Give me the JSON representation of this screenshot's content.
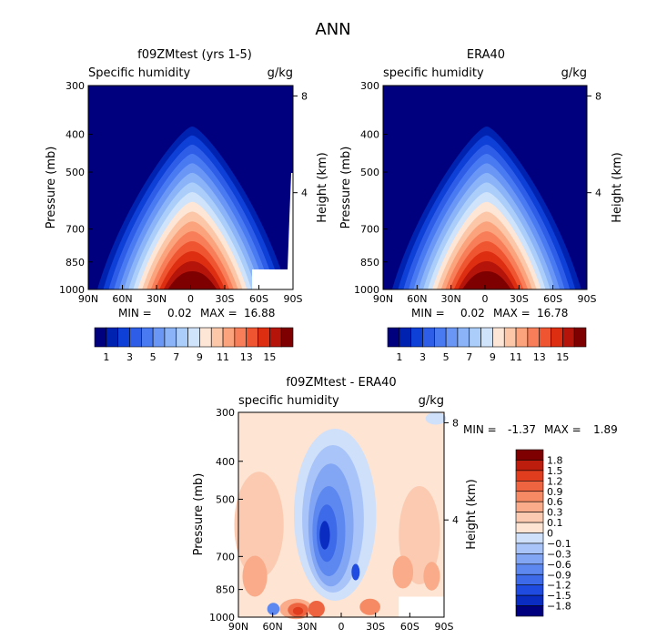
{
  "figure": {
    "title": "ANN"
  },
  "colors": {
    "abs_scale": [
      "#00007f",
      "#0022b0",
      "#0e3fd6",
      "#2e5ee8",
      "#4a7af2",
      "#6a96f6",
      "#8ab3f8",
      "#aacdfa",
      "#cfe3fb",
      "#fde6d6",
      "#fcc7a8",
      "#fba37c",
      "#f77e58",
      "#ef5530",
      "#dd2e12",
      "#b4140a",
      "#7f0000"
    ],
    "diff_scale": [
      "#00007f",
      "#0a2cc0",
      "#1f4be0",
      "#3d6ae8",
      "#5d88ef",
      "#83a6f4",
      "#a9c4f8",
      "#cfe0fb",
      "#fde4d3",
      "#fbcab1",
      "#f9ab8a",
      "#f58a64",
      "#ee6440",
      "#e03d1f",
      "#bd1d0c",
      "#7f0000"
    ]
  },
  "chart_data": [
    {
      "type": "heatmap",
      "title": "f09ZMtest (yrs 1-5)",
      "subtitle_left": "Specific humidity",
      "subtitle_right": "g/kg",
      "ylabel": "Pressure (mb)",
      "ylabel_right": "Height (km)",
      "x_ticks": [
        "90N",
        "60N",
        "30N",
        "0",
        "30S",
        "60S",
        "90S"
      ],
      "y_ticks": [
        "300",
        "400",
        "500",
        "700",
        "850",
        "1000"
      ],
      "height_ticks": [
        "8",
        "4"
      ],
      "stats": {
        "min_label": "MIN =",
        "min": "0.02",
        "max_label": "MAX =",
        "max": "16.88"
      },
      "colorbar_labels": [
        "1",
        "3",
        "5",
        "7",
        "9",
        "11",
        "13",
        "15"
      ],
      "peak_value": 16.88,
      "has_missing_corner": true
    },
    {
      "type": "heatmap",
      "title": "ERA40",
      "subtitle_left": "specific humidity",
      "subtitle_right": "g/kg",
      "ylabel": "Pressure (mb)",
      "ylabel_right": "Height (km)",
      "x_ticks": [
        "90N",
        "60N",
        "30N",
        "0",
        "30S",
        "60S",
        "90S"
      ],
      "y_ticks": [
        "300",
        "400",
        "500",
        "700",
        "850",
        "1000"
      ],
      "height_ticks": [
        "8",
        "4"
      ],
      "stats": {
        "min_label": "MIN =",
        "min": "0.02",
        "max_label": "MAX =",
        "max": "16.78"
      },
      "colorbar_labels": [
        "1",
        "3",
        "5",
        "7",
        "9",
        "11",
        "13",
        "15"
      ],
      "peak_value": 16.78,
      "has_missing_corner": false
    },
    {
      "type": "heatmap",
      "title": "f09ZMtest - ERA40",
      "subtitle_left": "specific humidity",
      "subtitle_right": "g/kg",
      "ylabel": "Pressure (mb)",
      "ylabel_right": "Height (km)",
      "x_ticks": [
        "90N",
        "60N",
        "30N",
        "0",
        "30S",
        "60S",
        "90S"
      ],
      "y_ticks": [
        "300",
        "400",
        "500",
        "700",
        "850",
        "1000"
      ],
      "height_ticks": [
        "8",
        "4"
      ],
      "stats": {
        "min_label": "MIN =",
        "min": "-1.37",
        "max_label": "MAX =",
        "max": "1.89"
      },
      "colorbar_labels": [
        "1.8",
        "1.5",
        "1.2",
        "0.9",
        "0.6",
        "0.3",
        "0.1",
        "0",
        "−0.1",
        "−0.3",
        "−0.6",
        "−0.9",
        "−1.2",
        "−1.5",
        "−1.8"
      ]
    }
  ]
}
